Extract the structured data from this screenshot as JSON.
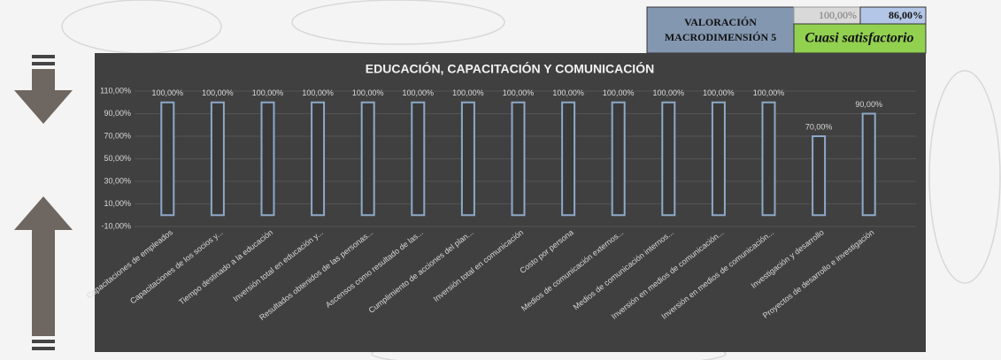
{
  "header": {
    "title": [
      "VALORACIÓN",
      "MACRODIMENSIÓN 5"
    ],
    "max_score": "100,00%",
    "score": "86,00%",
    "rating": "Cuasi satisfactorio"
  },
  "chart_data": {
    "type": "bar",
    "title": "EDUCACIÓN, CAPACITACIÓN Y COMUNICACIÓN",
    "categories": [
      "Capacitaciones de empleados",
      "Capacitaciones de los socios y...",
      "Tiempo destinado a la educación",
      "Inversión total en educación y...",
      "Resultados obtenidos de las personas...",
      "Ascensos como resultado de las...",
      "Cumplimiento de acciones del plan...",
      "Inversión total en comunicación",
      "Costo por persona",
      "Medios de comunicación externos...",
      "Medios de comunicación internos...",
      "Inversión en medios de comunicación...",
      "Inversión en medios de comunicación...",
      "Investigación y desarrollo",
      "Proyectos de desarrollo e investigación"
    ],
    "values": [
      100,
      100,
      100,
      100,
      100,
      100,
      100,
      100,
      100,
      100,
      100,
      100,
      100,
      70,
      90
    ],
    "value_labels": [
      "100,00%",
      "100,00%",
      "100,00%",
      "100,00%",
      "100,00%",
      "100,00%",
      "100,00%",
      "100,00%",
      "100,00%",
      "100,00%",
      "100,00%",
      "100,00%",
      "100,00%",
      "70,00%",
      "90,00%"
    ],
    "color": "#8ea9c9",
    "ylim": [
      -10,
      110
    ],
    "yticks": [
      {
        "value": -10,
        "label": "-10,00%"
      },
      {
        "value": 10,
        "label": "10,00%"
      },
      {
        "value": 30,
        "label": "30,00%"
      },
      {
        "value": 50,
        "label": "50,00%"
      },
      {
        "value": 70,
        "label": "70,00%"
      },
      {
        "value": 90,
        "label": "90,00%"
      },
      {
        "value": 110,
        "label": "110,00%"
      }
    ],
    "grid": true
  }
}
